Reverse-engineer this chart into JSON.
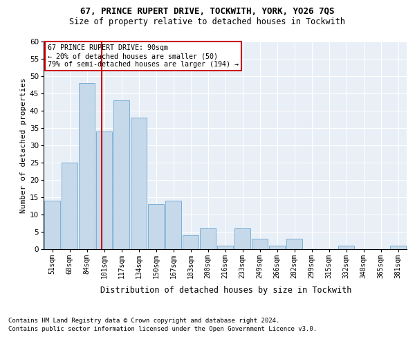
{
  "title1": "67, PRINCE RUPERT DRIVE, TOCKWITH, YORK, YO26 7QS",
  "title2": "Size of property relative to detached houses in Tockwith",
  "xlabel": "Distribution of detached houses by size in Tockwith",
  "ylabel": "Number of detached properties",
  "bar_labels": [
    "51sqm",
    "68sqm",
    "84sqm",
    "101sqm",
    "117sqm",
    "134sqm",
    "150sqm",
    "167sqm",
    "183sqm",
    "200sqm",
    "216sqm",
    "233sqm",
    "249sqm",
    "266sqm",
    "282sqm",
    "299sqm",
    "315sqm",
    "332sqm",
    "348sqm",
    "365sqm",
    "381sqm"
  ],
  "bar_values": [
    14,
    25,
    48,
    34,
    43,
    38,
    13,
    14,
    4,
    6,
    1,
    6,
    3,
    1,
    3,
    0,
    0,
    1,
    0,
    0,
    1
  ],
  "bar_color": "#c6d9ea",
  "bar_edge_color": "#7bafd4",
  "annotation_line1": "67 PRINCE RUPERT DRIVE: 90sqm",
  "annotation_line2": "← 20% of detached houses are smaller (50)",
  "annotation_line3": "79% of semi-detached houses are larger (194) →",
  "vline_color": "#cc0000",
  "ylim": [
    0,
    60
  ],
  "yticks": [
    0,
    5,
    10,
    15,
    20,
    25,
    30,
    35,
    40,
    45,
    50,
    55,
    60
  ],
  "footer1": "Contains HM Land Registry data © Crown copyright and database right 2024.",
  "footer2": "Contains public sector information licensed under the Open Government Licence v3.0.",
  "bg_color": "#e8eff7",
  "fig_bg_color": "#ffffff",
  "bin_starts": [
    51,
    68,
    84,
    101,
    117,
    134,
    150,
    167,
    183,
    200,
    216,
    233,
    249,
    266,
    282,
    299,
    315,
    332,
    348,
    365,
    381
  ],
  "property_sqm": 90
}
